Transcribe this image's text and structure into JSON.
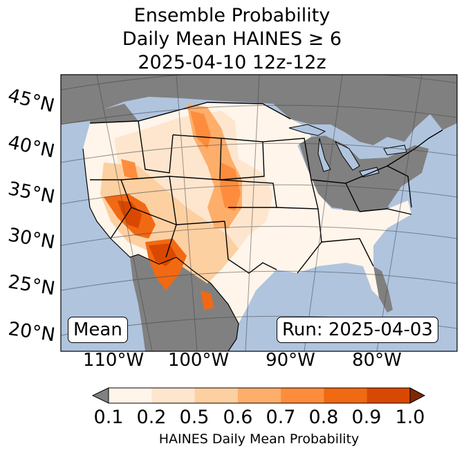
{
  "title": {
    "line1": "Ensemble Probability",
    "line2": "Daily Mean HAINES ≥ 6",
    "line3": "2025-04-10 12z-12z"
  },
  "map": {
    "latitude_labels": [
      "45°N",
      "40°N",
      "35°N",
      "30°N",
      "25°N",
      "20°N"
    ],
    "longitude_labels": [
      "110°W",
      "100°W",
      "90°W",
      "80°W"
    ],
    "ocean_color": "#b0c4de",
    "masked_color": "#808080",
    "lake_color": "#b0c4de"
  },
  "annotations": {
    "left_box": "Mean",
    "right_box": "Run: 2025-04-03"
  },
  "colorbar": {
    "label": "HAINES Daily Mean Probability",
    "ticks": [
      "0.1",
      "0.2",
      "0.5",
      "0.6",
      "0.7",
      "0.8",
      "0.9",
      "1.0"
    ],
    "under_color": "#808080",
    "over_color": "#7f2704",
    "colors": [
      "#fff5eb",
      "#fee6ce",
      "#fdd0a2",
      "#fdae6b",
      "#fd8d3c",
      "#f16913",
      "#d94801"
    ]
  }
}
